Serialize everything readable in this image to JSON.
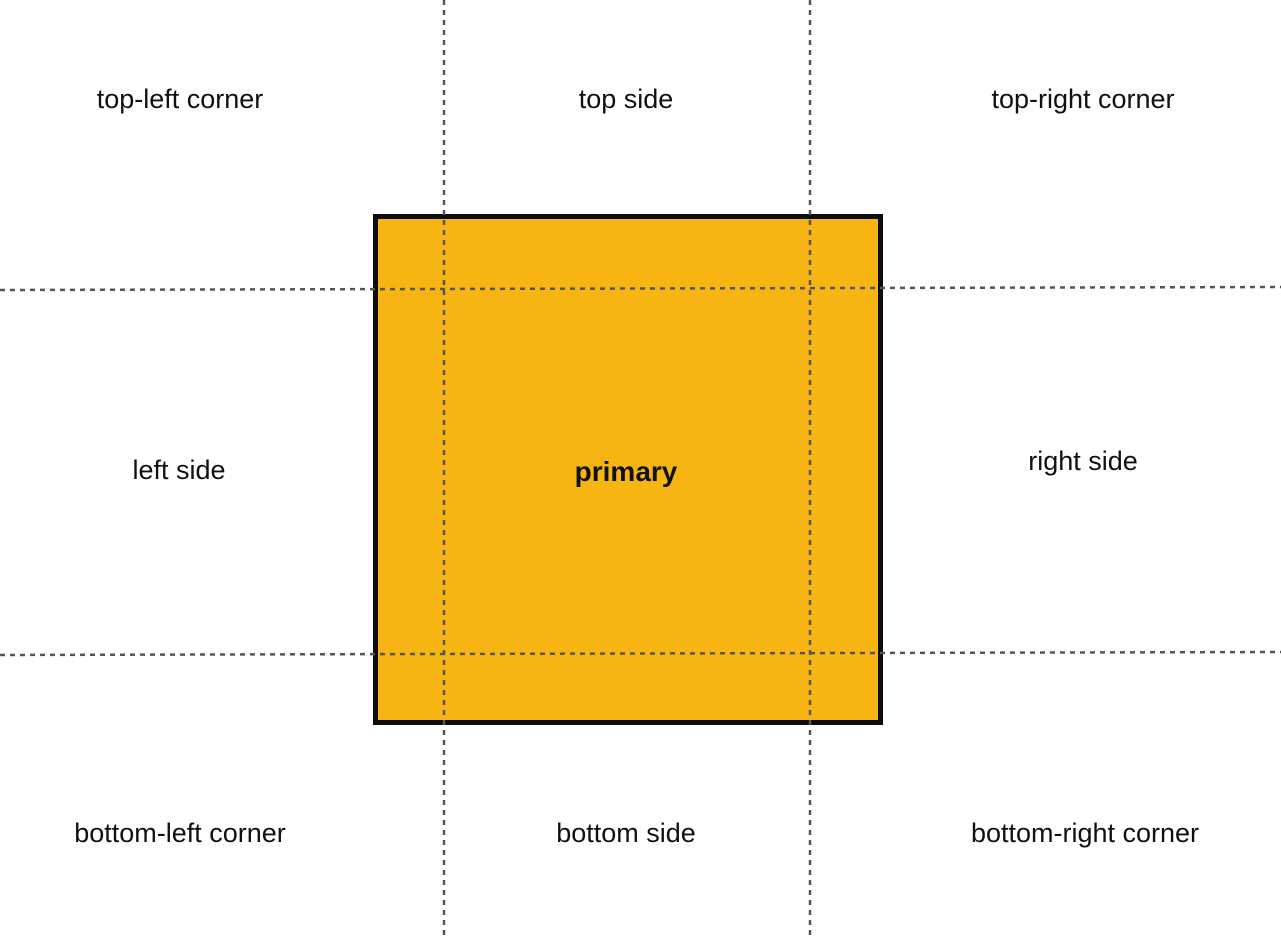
{
  "diagram": {
    "regions": {
      "top_left": "top-left corner",
      "top": "top side",
      "top_right": "top-right corner",
      "left": "left side",
      "center": "primary",
      "right": "right side",
      "bottom_left": "bottom-left corner",
      "bottom": "bottom side",
      "bottom_right": "bottom-right corner"
    },
    "colors": {
      "primary_fill": "#F7B514",
      "primary_border": "#0D0D0D",
      "guide_line": "#555555"
    }
  }
}
